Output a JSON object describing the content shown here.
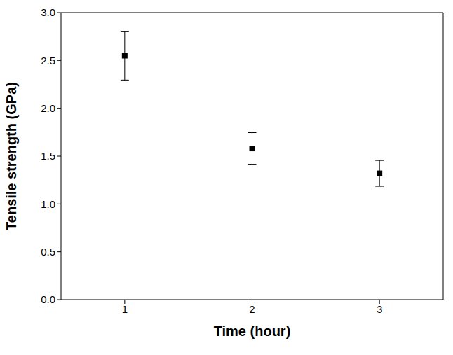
{
  "chart_data": {
    "type": "scatter",
    "x_label": "Time (hour)",
    "y_label": "Tensile strength (GPa)",
    "x": [
      1,
      2,
      3
    ],
    "values": [
      2.55,
      1.58,
      1.32
    ],
    "errors": [
      0.255,
      0.165,
      0.135
    ],
    "color": "#000000",
    "marker": "square",
    "xlim": [
      0.5,
      3.5
    ],
    "xticks": [
      1,
      2,
      3
    ],
    "ylim": [
      0,
      3
    ],
    "yticks": [
      {
        "value": 0,
        "label": "0.0"
      },
      {
        "value": 0.5,
        "label": "0.5"
      },
      {
        "value": 1,
        "label": "1.0"
      },
      {
        "value": 1.5,
        "label": "1.5"
      },
      {
        "value": 2,
        "label": "2.0"
      },
      {
        "value": 2.5,
        "label": "2.5"
      },
      {
        "value": 3,
        "label": "3.0"
      }
    ],
    "grid": false
  }
}
